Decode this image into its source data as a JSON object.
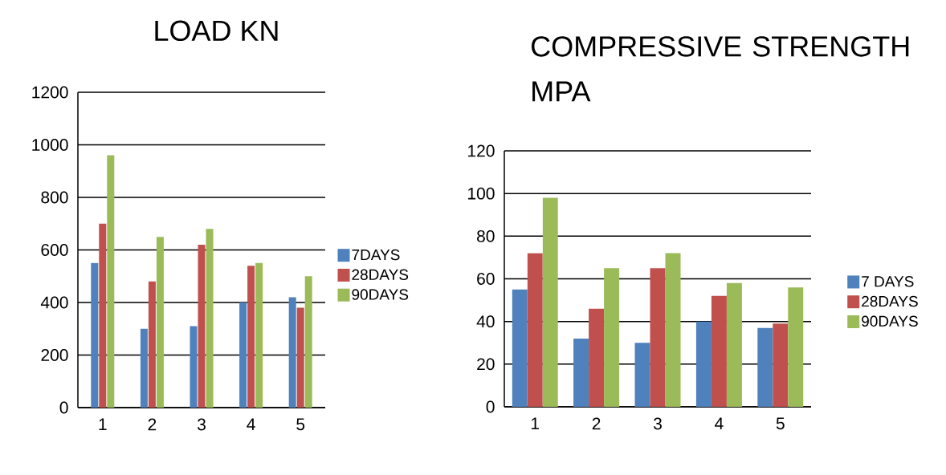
{
  "chart_data": [
    {
      "type": "bar",
      "title": "LOAD KN",
      "categories": [
        "1",
        "2",
        "3",
        "4",
        "5"
      ],
      "series": [
        {
          "name": "7DAYS",
          "color": "#4f81bd",
          "values": [
            550,
            300,
            310,
            400,
            420
          ]
        },
        {
          "name": "28DAYS",
          "color": "#c0504d",
          "values": [
            700,
            480,
            620,
            540,
            380
          ]
        },
        {
          "name": "90DAYS",
          "color": "#9bbb59",
          "values": [
            960,
            650,
            680,
            550,
            500
          ]
        }
      ],
      "ylim": [
        0,
        1200
      ],
      "yticks": [
        0,
        200,
        400,
        600,
        800,
        1000,
        1200
      ],
      "grid": "y",
      "legend": "right"
    },
    {
      "type": "bar",
      "title": "COMPRESSIVE STRENGTH MPA",
      "categories": [
        "1",
        "2",
        "3",
        "4",
        "5"
      ],
      "series": [
        {
          "name": "7 DAYS",
          "color": "#4f81bd",
          "values": [
            55,
            32,
            30,
            40,
            37
          ]
        },
        {
          "name": "28DAYS",
          "color": "#c0504d",
          "values": [
            72,
            46,
            65,
            52,
            39
          ]
        },
        {
          "name": "90DAYS",
          "color": "#9bbb59",
          "values": [
            98,
            65,
            72,
            58,
            56
          ]
        }
      ],
      "ylim": [
        0,
        120
      ],
      "yticks": [
        0,
        20,
        40,
        60,
        80,
        100,
        120
      ],
      "grid": "y",
      "legend": "right"
    }
  ]
}
